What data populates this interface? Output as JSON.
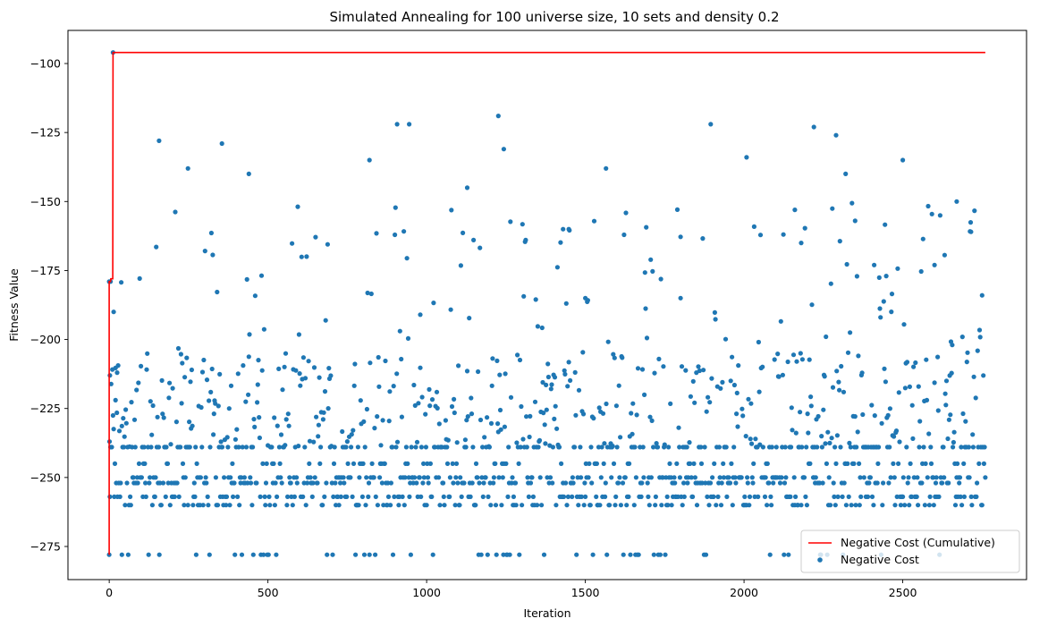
{
  "chart_data": {
    "type": "scatter",
    "title": "Simulated Annealing for 100 universe size, 10 sets and density 0.2",
    "xlabel": "Iteration",
    "ylabel": "Fitness Value",
    "xlim": [
      -130,
      2890
    ],
    "ylim": [
      -287,
      -88
    ],
    "xticks": [
      0,
      500,
      1000,
      1500,
      2000,
      2500
    ],
    "yticks": [
      -275,
      -250,
      -225,
      -200,
      -175,
      -150,
      -125,
      -100
    ],
    "grid": false,
    "legend_position": "lower right",
    "colors": {
      "cumulative": "#ff0000",
      "scatter": "#1f77b4"
    },
    "series": [
      {
        "name": "Negative Cost (Cumulative)",
        "kind": "line",
        "step_x": [
          0,
          0,
          4,
          5,
          11,
          12,
          2760
        ],
        "step_y": [
          -278,
          -179,
          -179,
          -178,
          -178,
          -96,
          -96
        ]
      },
      {
        "name": "Negative Cost",
        "kind": "scatter",
        "x_max": 2760,
        "level_values": [
          -278,
          -260,
          -257,
          -252,
          -250,
          -245,
          -239
        ],
        "band_range": [
          -239,
          -205
        ],
        "upper_range": [
          -205,
          -150
        ],
        "sample_points": [
          [
            0,
            -278
          ],
          [
            0,
            -179
          ],
          [
            1,
            -237
          ],
          [
            2,
            -213
          ],
          [
            4,
            -179
          ],
          [
            12,
            -96
          ],
          [
            14,
            -190
          ],
          [
            20,
            -222
          ],
          [
            25,
            -212
          ],
          [
            40,
            -278
          ],
          [
            157,
            -128
          ],
          [
            248,
            -138
          ],
          [
            355,
            -129
          ],
          [
            440,
            -140
          ],
          [
            820,
            -135
          ],
          [
            907,
            -122
          ],
          [
            945,
            -122
          ],
          [
            1128,
            -145
          ],
          [
            1226,
            -119
          ],
          [
            1243,
            -131
          ],
          [
            1565,
            -138
          ],
          [
            1895,
            -122
          ],
          [
            2008,
            -134
          ],
          [
            2220,
            -123
          ],
          [
            2290,
            -126
          ],
          [
            2320,
            -140
          ],
          [
            2500,
            -135
          ],
          [
            2670,
            -150
          ],
          [
            2715,
            -161
          ],
          [
            2750,
            -184
          ],
          [
            1430,
            -160
          ],
          [
            1448,
            -160
          ],
          [
            2160,
            -153
          ],
          [
            2180,
            -165
          ],
          [
            980,
            -191
          ],
          [
            1500,
            -185
          ],
          [
            1800,
            -185
          ],
          [
            2350,
            -157
          ],
          [
            2410,
            -173
          ],
          [
            2600,
            -173
          ]
        ]
      }
    ]
  }
}
